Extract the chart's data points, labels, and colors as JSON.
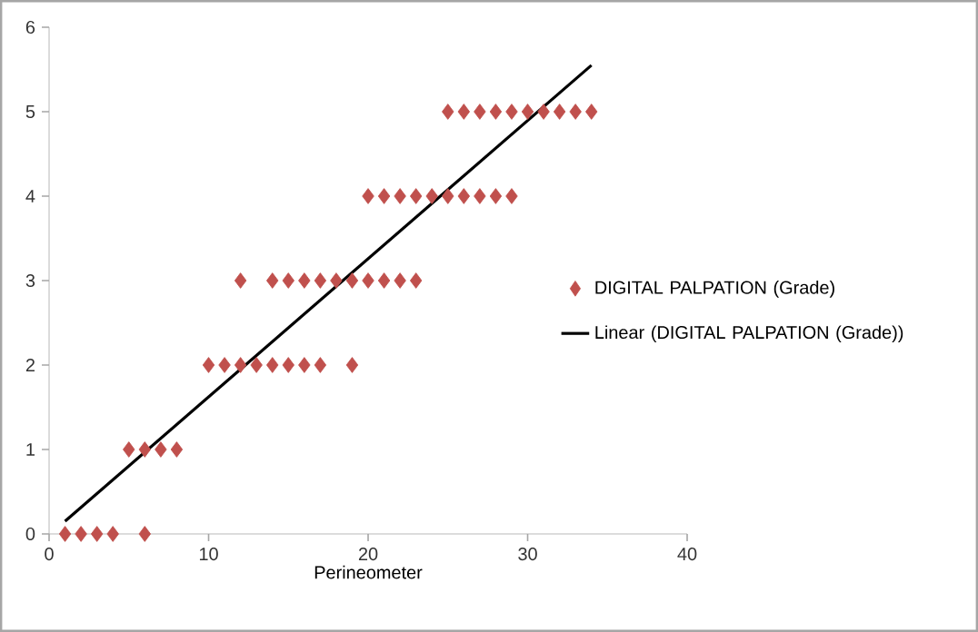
{
  "chart_data": {
    "type": "scatter",
    "xlabel": "Perineometer",
    "xlim": [
      0,
      40
    ],
    "xticks": [
      0,
      10,
      20,
      30,
      40
    ],
    "ylim": [
      0,
      6
    ],
    "yticks": [
      0,
      1,
      2,
      3,
      4,
      5,
      6
    ],
    "grid": false,
    "legend": "right",
    "marker": "diamond",
    "series": [
      {
        "name": "DIGITAL PALPATION (Grade)",
        "color": "#c0504d",
        "x": [
          1,
          2,
          3,
          4,
          6,
          5,
          6,
          7,
          8,
          10,
          11,
          12,
          13,
          14,
          15,
          16,
          17,
          19,
          12,
          14,
          15,
          16,
          17,
          18,
          19,
          20,
          21,
          22,
          23,
          20,
          21,
          22,
          23,
          24,
          25,
          26,
          27,
          28,
          29,
          25,
          26,
          27,
          28,
          29,
          30,
          31,
          32,
          33,
          34
        ],
        "values": [
          0,
          0,
          0,
          0,
          0,
          1,
          1,
          1,
          1,
          2,
          2,
          2,
          2,
          2,
          2,
          2,
          2,
          2,
          3,
          3,
          3,
          3,
          3,
          3,
          3,
          3,
          3,
          3,
          3,
          4,
          4,
          4,
          4,
          4,
          4,
          4,
          4,
          4,
          4,
          5,
          5,
          5,
          5,
          5,
          5,
          5,
          5,
          5,
          5
        ]
      },
      {
        "name": "Linear (DIGITAL PALPATION (Grade))",
        "type": "line",
        "color": "#000000",
        "marker": "none",
        "line_style": "solid",
        "x": [
          1,
          34
        ],
        "values": [
          0.15,
          5.55
        ]
      }
    ]
  }
}
